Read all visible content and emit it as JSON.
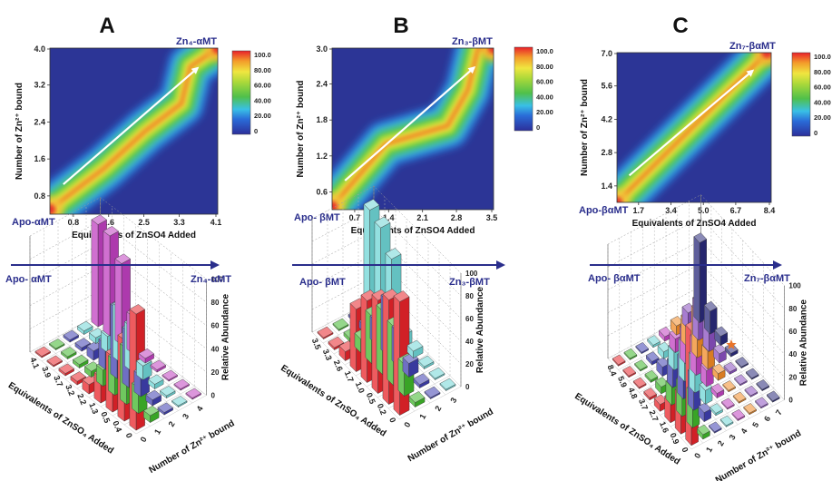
{
  "chart_data": [
    {
      "panel": "A",
      "type": "heatmap",
      "title": "A",
      "xlabel": "Equivalents of ZnSO4 Added",
      "ylabel": "Number of Zn²⁺ bound",
      "x_ticks": [
        "0.8",
        "1.6",
        "2.5",
        "3.3",
        "4.1"
      ],
      "y_ticks": [
        "0.8",
        "1.6",
        "2.4",
        "3.2",
        "4.0"
      ],
      "xlim": [
        0.4,
        4.1
      ],
      "ylim": [
        0.4,
        4.0
      ],
      "colorbar_ticks": [
        "100.0",
        "80.00",
        "60.00",
        "40.00",
        "20.00",
        "0"
      ],
      "colorbar_range": [
        0,
        100
      ],
      "start_label": "Apo-αMT",
      "end_label": "Zn₄-αMT",
      "ridge": [
        [
          0.4,
          0.5
        ],
        [
          1.6,
          1.4
        ],
        [
          2.5,
          2.2
        ],
        [
          3.3,
          2.8
        ],
        [
          3.5,
          3.6
        ],
        [
          4.1,
          4.0
        ]
      ]
    },
    {
      "panel": "B",
      "type": "heatmap",
      "title": "B",
      "xlabel": "Equivalents of ZnSO4 Added",
      "ylabel": "Number of Zn²⁺ bound",
      "x_ticks": [
        "0.7",
        "1.4",
        "2.1",
        "2.8",
        "3.5"
      ],
      "y_ticks": [
        "0.6",
        "1.2",
        "1.8",
        "2.4",
        "3.0"
      ],
      "xlim": [
        0.35,
        3.5
      ],
      "ylim": [
        0.3,
        3.0
      ],
      "colorbar_ticks": [
        "100.0",
        "80.00",
        "60.00",
        "40.00",
        "20.00",
        "0"
      ],
      "colorbar_range": [
        0,
        100
      ],
      "start_label": "Apo- βMT",
      "end_label": "Zn₃-βMT",
      "ridge": [
        [
          0.35,
          0.35
        ],
        [
          1.4,
          1.4
        ],
        [
          2.6,
          1.7
        ],
        [
          3.0,
          2.3
        ],
        [
          3.2,
          3.0
        ],
        [
          3.5,
          3.0
        ]
      ]
    },
    {
      "panel": "C",
      "type": "heatmap",
      "title": "C",
      "xlabel": "Equivalents of ZnSO4 Added",
      "ylabel": "Number of Zn²⁺ bound",
      "x_ticks": [
        "1.7",
        "3.4",
        "5.0",
        "6.7",
        "8.4"
      ],
      "y_ticks": [
        "1.4",
        "2.8",
        "4.2",
        "5.6",
        "7.0"
      ],
      "xlim": [
        0.8,
        8.4
      ],
      "ylim": [
        0.6,
        7.0
      ],
      "colorbar_ticks": [
        "100.0",
        "80.00",
        "60.00",
        "40.00",
        "20.00",
        "0"
      ],
      "colorbar_range": [
        0,
        100
      ],
      "start_label": "Apo-βαMT",
      "end_label": "Zn₇-βαMT",
      "ridge": [
        [
          0.8,
          0.6
        ],
        [
          8.2,
          7.0
        ]
      ]
    },
    {
      "panel": "A-3D",
      "type": "bar",
      "xlabel": "Equivalents of ZnSO₄ Added",
      "ylabel": "Number of Zn²⁺ bound",
      "zlabel": "Relative Abundance",
      "categories": [
        "0",
        "0.4",
        "0.5",
        "1.3",
        "2.2",
        "3.2",
        "3.7",
        "3.9",
        "4.1"
      ],
      "zn_ticks": [
        "0",
        "1",
        "2",
        "3",
        "4"
      ],
      "z_ticks": [
        "0",
        "20",
        "40",
        "60",
        "80",
        "100"
      ],
      "start_label": "Apo- αMT",
      "end_label": "Zn₄-αMT",
      "series": [
        {
          "name": "0",
          "color": "#e8242a",
          "values": [
            100,
            70,
            48,
            22,
            8,
            3,
            2,
            1,
            1
          ]
        },
        {
          "name": "1",
          "color": "#3fb62a",
          "values": [
            6,
            22,
            48,
            30,
            14,
            5,
            3,
            2,
            1
          ]
        },
        {
          "name": "2",
          "color": "#3f3fb0",
          "values": [
            2,
            5,
            18,
            48,
            60,
            22,
            8,
            3,
            2
          ]
        },
        {
          "name": "3",
          "color": "#6fd6d6",
          "values": [
            0,
            2,
            4,
            12,
            38,
            46,
            14,
            5,
            3
          ]
        },
        {
          "name": "4",
          "color": "#c040c0",
          "values": [
            0,
            0,
            1,
            2,
            4,
            32,
            70,
            86,
            88
          ]
        }
      ]
    },
    {
      "panel": "B-3D",
      "type": "bar",
      "xlabel": "Equivalents of ZnSO₄ Added",
      "ylabel": "Number of Zn²⁺ bound",
      "zlabel": "Relative Abundance",
      "categories": [
        "0",
        "0.2",
        "0.5",
        "1.0",
        "1.7",
        "2.6",
        "3.3",
        "3.5"
      ],
      "zn_ticks": [
        "0",
        "1",
        "2",
        "3"
      ],
      "z_ticks": [
        "0",
        "20",
        "40",
        "60",
        "80",
        "100"
      ],
      "start_label": "Apo- βMT",
      "end_label": "Zn₃-βMT",
      "series": [
        {
          "name": "0",
          "color": "#e8242a",
          "values": [
            100,
            92,
            82,
            72,
            55,
            8,
            2,
            1
          ]
        },
        {
          "name": "1",
          "color": "#3fb62a",
          "values": [
            4,
            28,
            52,
            56,
            42,
            12,
            3,
            1
          ]
        },
        {
          "name": "2",
          "color": "#3f3fb0",
          "values": [
            0,
            3,
            12,
            30,
            48,
            20,
            6,
            2
          ]
        },
        {
          "name": "3",
          "color": "#6fd6d6",
          "values": [
            0,
            0,
            2,
            6,
            10,
            68,
            86,
            92
          ]
        }
      ]
    },
    {
      "panel": "C-3D",
      "type": "bar",
      "xlabel": "Equivalents of ZnSO₄ Added",
      "ylabel": "Number of Zn²⁺ bound",
      "zlabel": "Relative Abundance",
      "categories": [
        "0",
        "0.9",
        "1.6",
        "2.7",
        "3.7",
        "4.8",
        "5.9",
        "8.4"
      ],
      "zn_ticks": [
        "0",
        "1",
        "2",
        "3",
        "4",
        "5",
        "6",
        "7"
      ],
      "z_ticks": [
        "0",
        "20",
        "40",
        "60",
        "80",
        "100"
      ],
      "start_label": "Apo- βαMT",
      "end_label": "Zn₇-βαMT",
      "series": [
        {
          "name": "0",
          "color": "#e8242a",
          "values": [
            100,
            34,
            18,
            6,
            2,
            1,
            0,
            0
          ]
        },
        {
          "name": "1",
          "color": "#3fb62a",
          "values": [
            4,
            30,
            28,
            16,
            6,
            2,
            1,
            0
          ]
        },
        {
          "name": "2",
          "color": "#3f3fb0",
          "values": [
            0,
            8,
            30,
            34,
            20,
            8,
            3,
            1
          ]
        },
        {
          "name": "3",
          "color": "#6fd6d6",
          "values": [
            0,
            2,
            12,
            30,
            32,
            16,
            6,
            2
          ]
        },
        {
          "name": "4",
          "color": "#c040c0",
          "values": [
            0,
            0,
            4,
            14,
            30,
            28,
            12,
            4
          ]
        },
        {
          "name": "5",
          "color": "#f08a26",
          "values": [
            0,
            0,
            1,
            6,
            16,
            40,
            22,
            8
          ]
        },
        {
          "name": "6",
          "color": "#8a50c0",
          "values": [
            0,
            0,
            0,
            2,
            8,
            22,
            32,
            14
          ]
        },
        {
          "name": "7",
          "color": "#2a2a7a",
          "values": [
            0,
            0,
            0,
            0,
            3,
            8,
            20,
            70
          ]
        }
      ]
    }
  ]
}
